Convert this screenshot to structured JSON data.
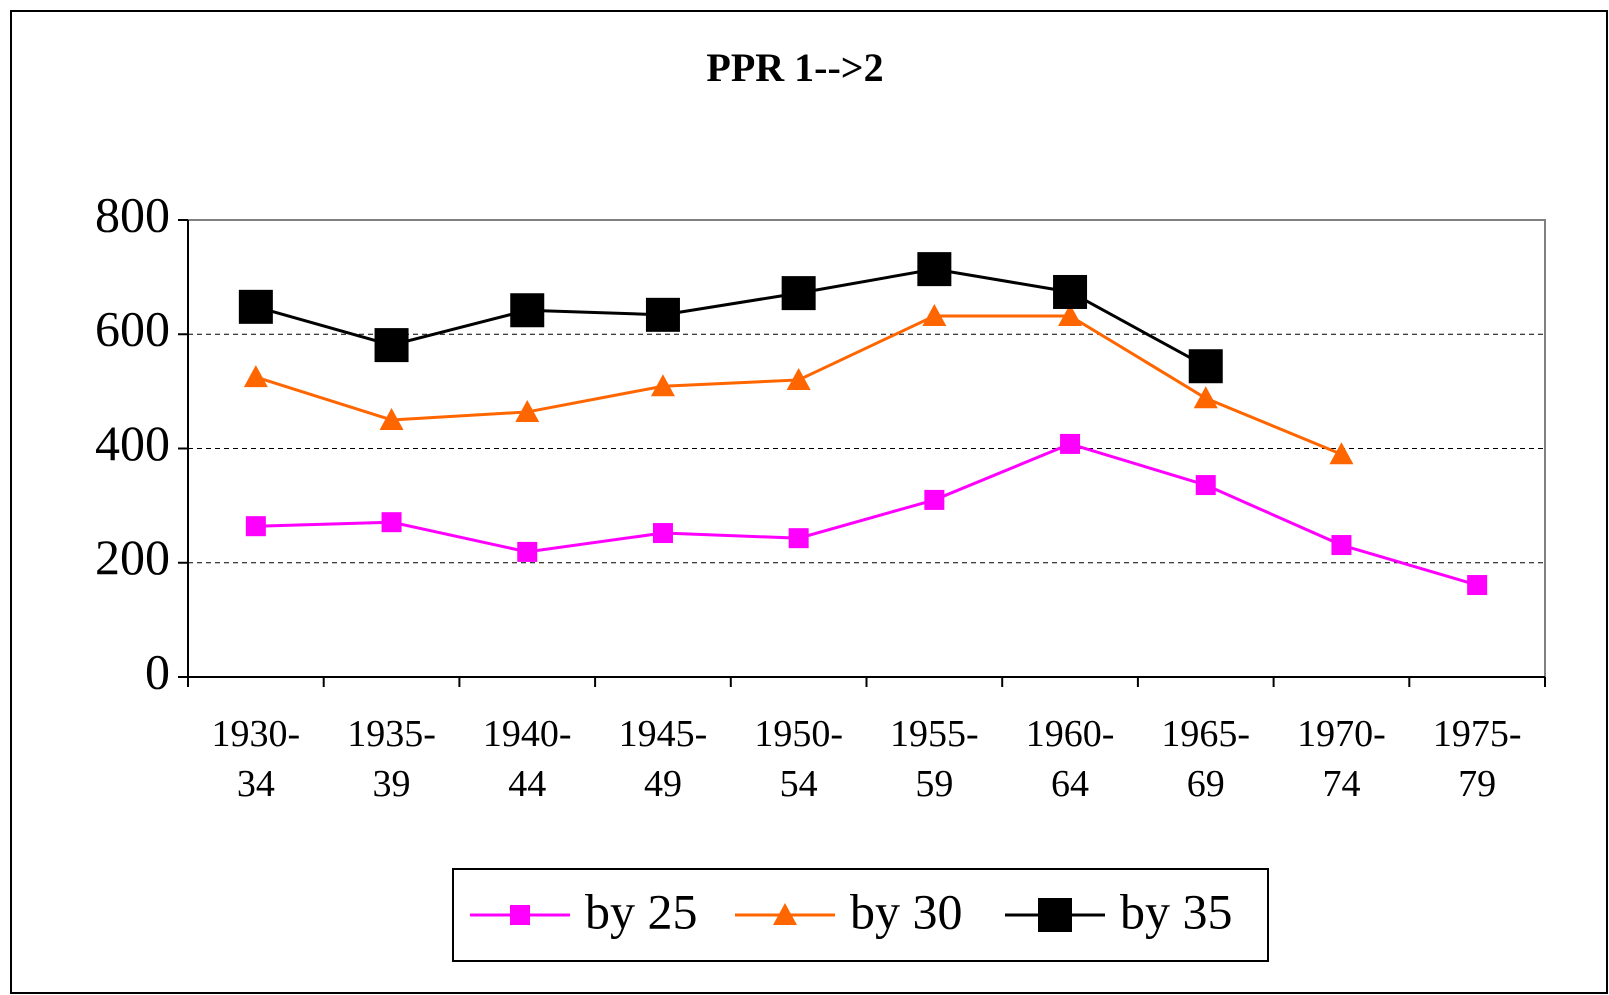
{
  "chart_data": {
    "type": "line",
    "title": "PPR 1-->2",
    "categories": [
      "1930-\n34",
      "1935-\n39",
      "1940-\n44",
      "1945-\n49",
      "1950-\n54",
      "1955-\n59",
      "1960-\n64",
      "1965-\n69",
      "1970-\n74",
      "1975-\n79"
    ],
    "series": [
      {
        "name": "by 25",
        "color": "#ff00ff",
        "marker": "square",
        "values": [
          264,
          271,
          219,
          252,
          243,
          310,
          408,
          336,
          231,
          161
        ]
      },
      {
        "name": "by 30",
        "color": "#ff6600",
        "marker": "triangle",
        "values": [
          525,
          450,
          464,
          509,
          520,
          632,
          632,
          488,
          390,
          null
        ]
      },
      {
        "name": "by 35",
        "color": "#000000",
        "marker": "big-square",
        "values": [
          648,
          581,
          642,
          634,
          672,
          714,
          674,
          544,
          null,
          null
        ]
      }
    ],
    "ylim": [
      0,
      800
    ],
    "yticks": [
      0,
      200,
      400,
      600,
      800
    ],
    "grid": true,
    "legend": "bottom"
  }
}
